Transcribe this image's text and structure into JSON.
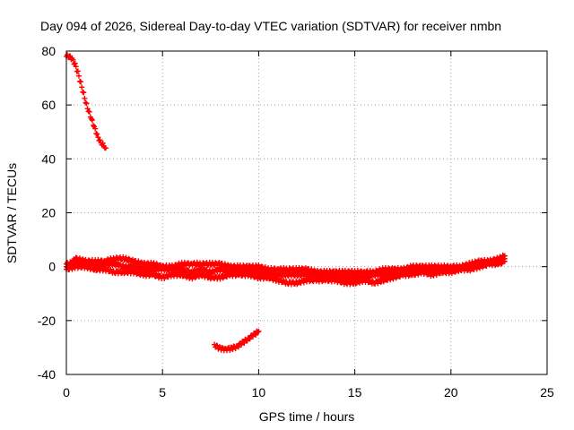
{
  "chart_data": {
    "type": "scatter",
    "title": "Day 094 of 2026, Sidereal Day-to-day VTEC variation (SDTVAR) for receiver nmbn",
    "xlabel": "GPS time / hours",
    "ylabel": "SDTVAR / TECUs",
    "xlim": [
      0,
      25
    ],
    "ylim": [
      -40,
      80
    ],
    "x_ticks": [
      0,
      5,
      10,
      15,
      20,
      25
    ],
    "y_ticks": [
      -40,
      -20,
      0,
      20,
      40,
      60,
      80
    ],
    "grid": true,
    "marker": "plus",
    "series_color": "#ff0000",
    "series": [
      {
        "name": "early-decline",
        "x": [
          0.0,
          0.15,
          0.3,
          0.45,
          0.6,
          0.75,
          0.9,
          1.05,
          1.2,
          1.35,
          1.5,
          1.65,
          1.8,
          1.95,
          2.05
        ],
        "y": [
          78,
          78,
          77,
          75,
          72,
          68,
          64,
          60,
          57,
          54,
          51,
          48,
          46,
          45,
          44
        ]
      },
      {
        "name": "bundle-upper",
        "x": [
          0,
          0.5,
          1,
          1.5,
          2,
          2.5,
          3,
          3.5,
          4,
          4.5,
          5,
          5.5,
          6,
          6.5,
          7,
          7.5,
          8,
          8.5,
          9,
          9.5,
          10,
          10.5,
          11,
          11.5,
          12,
          12.5,
          13,
          13.5,
          14,
          14.5,
          15,
          15.5,
          16,
          16.5,
          17,
          17.5,
          18,
          18.5,
          19,
          19.5,
          20,
          20.5,
          21,
          21.5,
          22,
          22.5,
          22.8
        ],
        "y": [
          0,
          3,
          2,
          2,
          2,
          3,
          3,
          2,
          1,
          1,
          0,
          0,
          1,
          1,
          1,
          1,
          1,
          0,
          0,
          0,
          0,
          -1,
          -1,
          -1,
          -1,
          -1,
          -2,
          -2,
          -2,
          -2,
          -2,
          -2,
          -2,
          -1,
          -1,
          -1,
          0,
          0,
          0,
          0,
          0,
          0,
          1,
          2,
          2,
          3,
          4
        ]
      },
      {
        "name": "bundle-middle",
        "x": [
          0,
          0.5,
          1,
          1.5,
          2,
          2.5,
          3,
          3.5,
          4,
          4.5,
          5,
          5.5,
          6,
          6.5,
          7,
          7.5,
          8,
          8.5,
          9,
          9.5,
          10,
          10.5,
          11,
          11.5,
          12,
          12.5,
          13,
          13.5,
          14,
          14.5,
          15,
          15.5,
          16,
          16.5,
          17,
          17.5,
          18,
          18.5,
          19,
          19.5,
          20,
          20.5,
          21,
          21.5,
          22,
          22.5,
          22.8
        ],
        "y": [
          1,
          1,
          1,
          0,
          1,
          1,
          0,
          0,
          -1,
          -1,
          -1,
          -1,
          -1,
          -2,
          -1,
          -2,
          -1,
          -2,
          -2,
          -2,
          -2,
          -3,
          -3,
          -3,
          -3,
          -3,
          -3,
          -4,
          -4,
          -4,
          -4,
          -4,
          -3,
          -3,
          -2,
          -2,
          -2,
          -1,
          -1,
          -1,
          -1,
          0,
          0,
          1,
          2,
          2,
          3
        ]
      },
      {
        "name": "bundle-lower",
        "x": [
          0,
          0.5,
          1,
          1.5,
          2,
          2.5,
          3,
          3.5,
          4,
          4.5,
          5,
          5.5,
          6,
          6.5,
          7,
          7.5,
          8,
          8.5,
          9,
          9.5,
          10,
          10.5,
          11,
          11.5,
          12,
          12.5,
          13,
          13.5,
          14,
          14.5,
          15,
          15.5,
          16,
          16.5,
          17,
          17.5,
          18,
          18.5,
          19,
          19.5,
          20,
          20.5,
          21,
          21.5,
          22,
          22.5,
          22.8
        ],
        "y": [
          -1,
          0,
          0,
          -1,
          -1,
          -2,
          -2,
          -2,
          -3,
          -3,
          -4,
          -3,
          -3,
          -4,
          -3,
          -4,
          -4,
          -3,
          -3,
          -3,
          -4,
          -4,
          -5,
          -6,
          -6,
          -5,
          -5,
          -5,
          -5,
          -6,
          -6,
          -5,
          -6,
          -5,
          -4,
          -3,
          -3,
          -2,
          -3,
          -2,
          -2,
          -1,
          -1,
          0,
          1,
          1,
          2
        ]
      },
      {
        "name": "midday-dip",
        "x": [
          7.7,
          7.9,
          8.1,
          8.3,
          8.5,
          8.7,
          8.9,
          9.1,
          9.3,
          9.5,
          9.7,
          9.9,
          10.0
        ],
        "y": [
          -29,
          -30,
          -30.5,
          -30.5,
          -30.5,
          -30,
          -29.5,
          -28.5,
          -27.5,
          -26.5,
          -25.5,
          -24.5,
          -24
        ]
      }
    ]
  }
}
